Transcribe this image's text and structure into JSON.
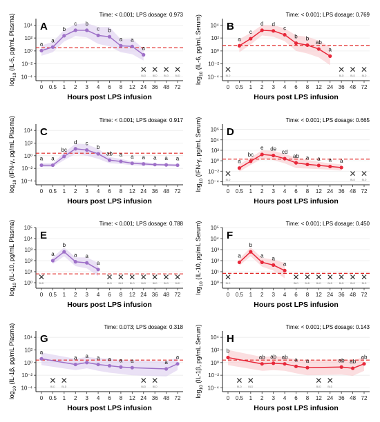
{
  "colors": {
    "plasma": "#9E70C8",
    "plasma_fill": "#D9C9EC",
    "serum": "#E8283A",
    "serum_fill": "#F7C2C7",
    "threshold": "#E0201F"
  },
  "x_axis": {
    "label": "Hours post LPS infusion",
    "ticks": [
      "0",
      "0.5",
      "1",
      "2",
      "3",
      "4",
      "6",
      "8",
      "12",
      "24",
      "36",
      "48",
      "72"
    ]
  },
  "y_ticks": [
    "10⁻⁴",
    "10⁻²",
    "10⁰",
    "10²",
    "10⁴"
  ],
  "y_ticks_ext": [
    "10⁻⁴",
    "10⁻²",
    "10⁰",
    "10²",
    "10⁴",
    "10⁶"
  ],
  "y_ticks_il10": [
    "10⁰",
    "10¹",
    "10²",
    "10³",
    "10⁴",
    "10⁵"
  ],
  "bld_text": "BLD",
  "chart_data": [
    {
      "type": "line",
      "panel": "A",
      "sample": "plasma",
      "ylabel_pre": "log",
      "ylabel_sub": "10",
      "ylabel_post": " (IL-6, pg/mL Plasma)",
      "stat": "Time: < 0.001; LPS dosage: 0.973",
      "ylim_log10": [
        -4.6,
        5
      ],
      "yticks": "y_ticks",
      "threshold_log10": 0.5,
      "points": [
        [
          0,
          0.05,
          "a"
        ],
        [
          1,
          0.6,
          "a"
        ],
        [
          2,
          2.35,
          "b"
        ],
        [
          3,
          3.2,
          "c"
        ],
        [
          4,
          3.2,
          "b"
        ],
        [
          5,
          2.4,
          "c"
        ],
        [
          6,
          2.2,
          "b"
        ],
        [
          7,
          0.8,
          "a"
        ],
        [
          8,
          0.7,
          "a"
        ],
        [
          9,
          -0.6,
          "a"
        ]
      ],
      "band": [
        0.8,
        0.8,
        0.9,
        0.9,
        1.1,
        1.3,
        1.5,
        1.0,
        1.2,
        0.9
      ],
      "nd": [
        9,
        10,
        11,
        12
      ]
    },
    {
      "type": "line",
      "panel": "B",
      "sample": "serum",
      "ylabel_pre": "log",
      "ylabel_sub": "10",
      "ylabel_post": " (IL-6, pg/mL Serum)",
      "stat": "Time: < 0.001; LPS dosage: 0.769",
      "ylim_log10": [
        -4.6,
        5
      ],
      "yticks": "y_ticks",
      "threshold_log10": 0.8,
      "points": [
        [
          1,
          0.8,
          "a"
        ],
        [
          2,
          1.9,
          "c"
        ],
        [
          3,
          3.2,
          "d"
        ],
        [
          4,
          3.1,
          "d"
        ],
        [
          5,
          2.5,
          "c"
        ],
        [
          6,
          1.2,
          "b"
        ],
        [
          7,
          0.9,
          "b"
        ],
        [
          8,
          0.3,
          "ab"
        ],
        [
          9,
          -0.8,
          "a"
        ]
      ],
      "band": [
        1.0,
        0.9,
        0.8,
        0.9,
        1.0,
        1.2,
        1.3,
        1.3,
        1.4
      ],
      "nd": [
        0,
        10,
        11,
        12
      ]
    },
    {
      "type": "line",
      "panel": "C",
      "sample": "plasma",
      "ylabel_pre": "log",
      "ylabel_sub": "10",
      "ylabel_post": " (IFN-γ, pg/mL Plasma)",
      "stat": "Time: < 0.001; LPS dosage: 0.917",
      "ylim_log10": [
        -4.6,
        5
      ],
      "yticks": "y_ticks",
      "threshold_log10": 0.4,
      "points": [
        [
          0,
          -1.5,
          "a"
        ],
        [
          1,
          -1.5,
          "a"
        ],
        [
          2,
          -0.1,
          "bc"
        ],
        [
          3,
          1.1,
          "d"
        ],
        [
          4,
          0.9,
          "c"
        ],
        [
          5,
          0.3,
          "b"
        ],
        [
          6,
          -0.7,
          "ab"
        ],
        [
          7,
          -0.9,
          "a"
        ],
        [
          8,
          -1.2,
          "a"
        ],
        [
          9,
          -1.3,
          "a"
        ],
        [
          10,
          -1.4,
          "a"
        ],
        [
          11,
          -1.45,
          "a"
        ],
        [
          12,
          -1.5,
          "a"
        ]
      ],
      "band": [
        0.3,
        0.3,
        0.6,
        0.8,
        0.9,
        0.8,
        0.5,
        0.4,
        0.3,
        0.3,
        0.2,
        0.2,
        0.2
      ],
      "nd": []
    },
    {
      "type": "line",
      "panel": "D",
      "sample": "serum",
      "ylabel_pre": "log",
      "ylabel_sub": "10",
      "ylabel_post": " (IFN-γ, pg/mL Serum)",
      "stat": "Time: < 0.001; LPS dosage: 0.665",
      "ylim_log10": [
        -4.6,
        7
      ],
      "yticks": "y_ticks_ext",
      "threshold_log10": 0.3,
      "points": [
        [
          1,
          -1.4,
          "a"
        ],
        [
          2,
          -0.1,
          "bc"
        ],
        [
          3,
          1.2,
          "e"
        ],
        [
          4,
          1.0,
          "de"
        ],
        [
          5,
          0.4,
          "cd"
        ],
        [
          6,
          -0.4,
          "ab"
        ],
        [
          7,
          -0.7,
          "a"
        ],
        [
          8,
          -0.9,
          "a"
        ],
        [
          9,
          -1.1,
          "a"
        ],
        [
          10,
          -1.3,
          "a"
        ]
      ],
      "band": [
        0.7,
        0.7,
        0.8,
        0.9,
        0.9,
        1.0,
        0.8,
        0.7,
        0.6,
        0.6
      ],
      "nd": [
        0,
        11,
        12
      ]
    },
    {
      "type": "line",
      "panel": "E",
      "sample": "plasma",
      "ylabel_pre": "log",
      "ylabel_sub": "10",
      "ylabel_post": " (IL-10, pg/mL Plasma)",
      "stat": "Time: < 0.001; LPS dosage: 0.788",
      "ylim_log10": [
        -0.5,
        5
      ],
      "yticks": "y_ticks_il10",
      "threshold_log10": 0.8,
      "points": [
        [
          1,
          2.0,
          "a"
        ],
        [
          2,
          2.8,
          "b"
        ],
        [
          3,
          1.9,
          "a"
        ],
        [
          4,
          1.8,
          "a"
        ],
        [
          5,
          1.2,
          "a"
        ]
      ],
      "band": [
        0.3,
        0.4,
        0.4,
        0.5,
        0.6
      ],
      "nd": [
        0,
        6,
        7,
        8,
        9,
        10,
        11,
        12
      ]
    },
    {
      "type": "line",
      "panel": "F",
      "sample": "serum",
      "ylabel_pre": "log",
      "ylabel_sub": "10",
      "ylabel_post": " (IL-10, pg/mL Serum)",
      "stat": "Time: < 0.001; LPS dosage: 0.450",
      "ylim_log10": [
        -0.5,
        5
      ],
      "yticks": "y_ticks_il10",
      "threshold_log10": 0.85,
      "points": [
        [
          1,
          1.85,
          "a"
        ],
        [
          2,
          2.8,
          "b"
        ],
        [
          3,
          1.85,
          "a"
        ],
        [
          4,
          1.6,
          "a"
        ],
        [
          5,
          1.1,
          "a"
        ]
      ],
      "band": [
        0.3,
        0.4,
        0.4,
        0.5,
        0.7
      ],
      "nd": [
        0,
        6,
        7,
        8,
        9,
        10,
        11,
        12
      ]
    },
    {
      "type": "line",
      "panel": "G",
      "sample": "plasma",
      "ylabel_pre": "log",
      "ylabel_sub": "10",
      "ylabel_post": " (IL-1β, pg/mL Plasma)",
      "stat": "Time: 0.073; LPS dosage: 0.318",
      "ylim_log10": [
        -4.6,
        5
      ],
      "yticks": "y_ticks",
      "threshold_log10": 0.4,
      "points": [
        [
          0,
          0.6,
          "a"
        ],
        [
          3,
          -0.3,
          "a"
        ],
        [
          4,
          0.0,
          "a"
        ],
        [
          5,
          -0.3,
          "a"
        ],
        [
          6,
          -0.5,
          "a"
        ],
        [
          7,
          -0.7,
          "a"
        ],
        [
          8,
          -0.8,
          "a"
        ],
        [
          11,
          -1.0,
          "a"
        ],
        [
          12,
          -0.2,
          "a"
        ]
      ],
      "band": [
        1.0,
        0.9,
        0.9,
        1.0,
        1.1,
        1.1,
        1.2,
        1.2,
        1.0
      ],
      "nd": [
        1,
        2,
        9,
        10
      ]
    },
    {
      "type": "line",
      "panel": "H",
      "sample": "serum",
      "ylabel_pre": "log",
      "ylabel_sub": "10",
      "ylabel_post": " (IL-1β, pg/mL Serum)",
      "stat": "Time: < 0.001; LPS dosage: 0.143",
      "ylim_log10": [
        -4.6,
        5
      ],
      "yticks": "y_ticks",
      "threshold_log10": 0.4,
      "points": [
        [
          0,
          0.8,
          "b"
        ],
        [
          3,
          -0.2,
          "ab"
        ],
        [
          4,
          -0.1,
          "ab"
        ],
        [
          5,
          -0.2,
          "ab"
        ],
        [
          6,
          -0.6,
          "a"
        ],
        [
          7,
          -0.8,
          "a"
        ],
        [
          10,
          -0.7,
          "ab"
        ],
        [
          11,
          -0.9,
          "ab"
        ],
        [
          12,
          -0.2,
          "ab"
        ]
      ],
      "band": [
        1.2,
        1.1,
        1.1,
        1.1,
        1.1,
        1.2,
        1.2,
        1.2,
        1.1
      ],
      "nd": [
        1,
        2,
        8,
        9
      ]
    }
  ]
}
